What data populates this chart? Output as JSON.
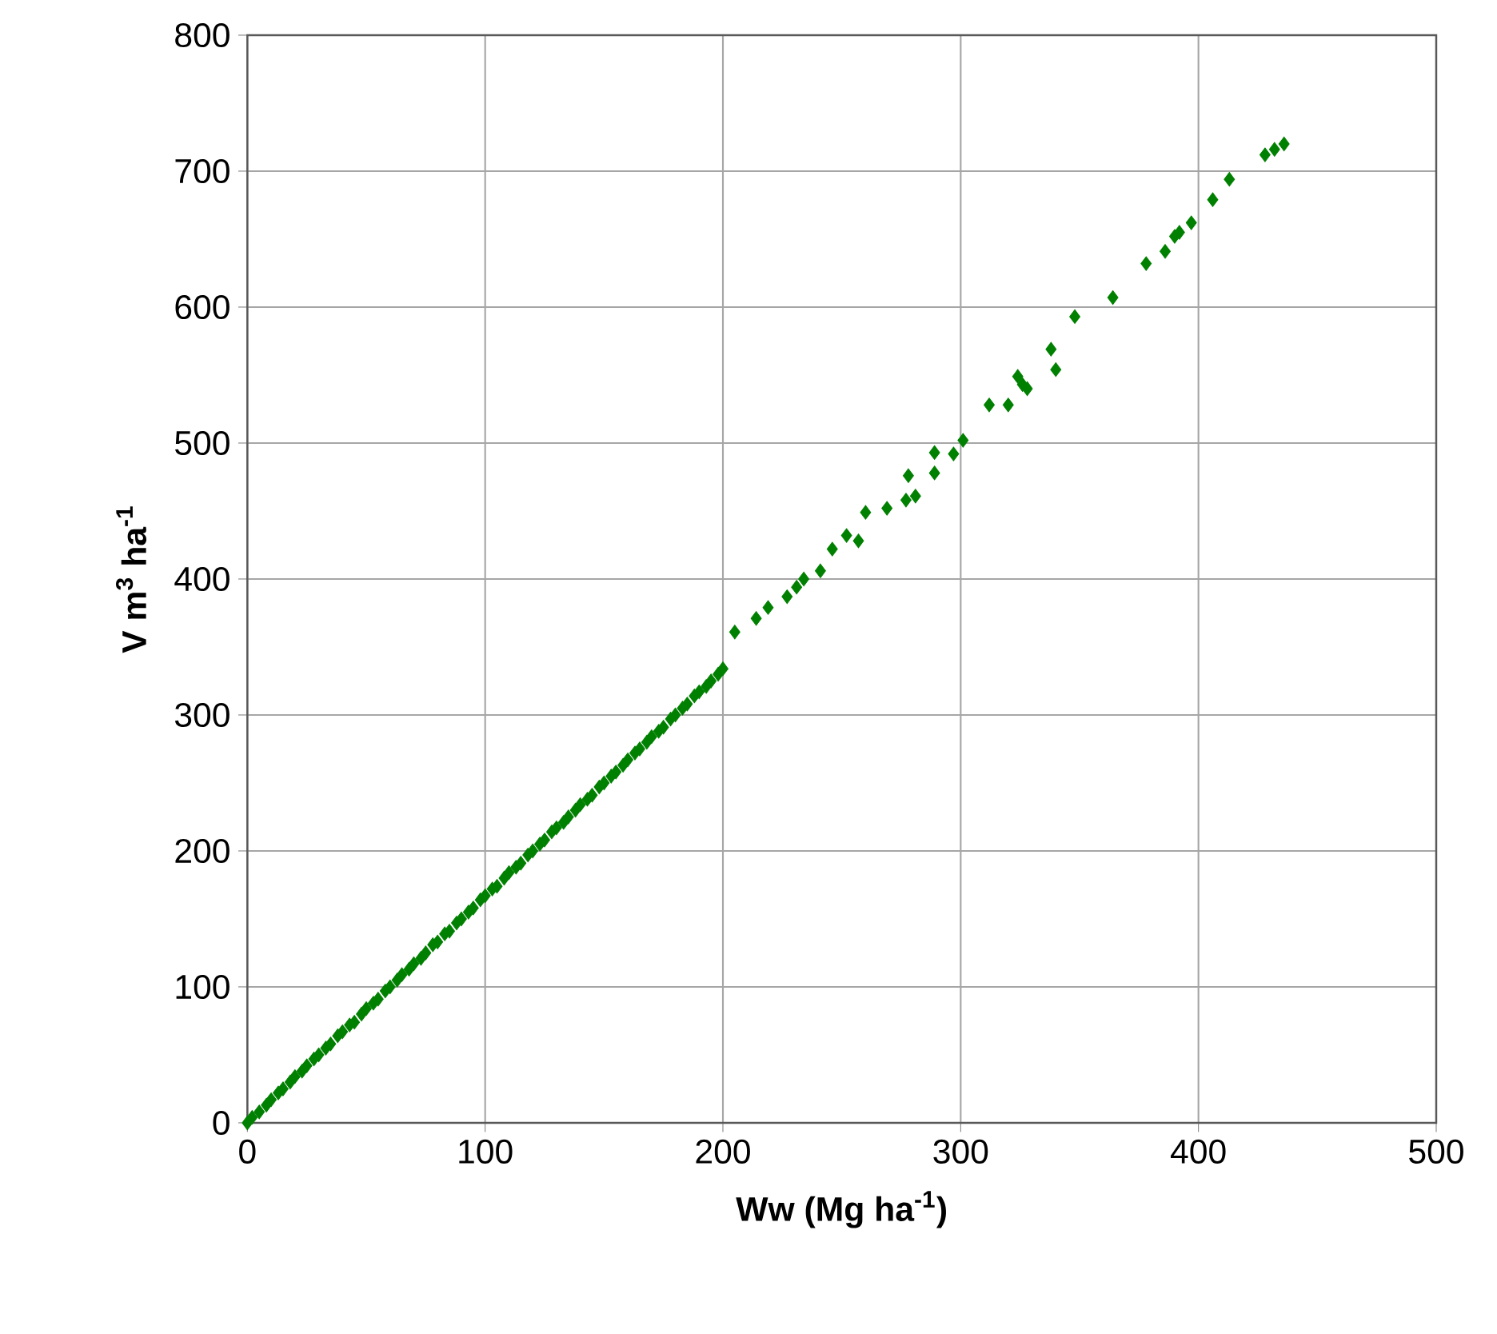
{
  "chart_data": {
    "type": "scatter",
    "xlabel": "Ww (Mg ha$^{-1}$)",
    "ylabel": "V m$^{3}$ ha$^{-1}$",
    "xlim": [
      0,
      500
    ],
    "ylim": [
      0,
      800
    ],
    "xticks": [
      0,
      100,
      200,
      300,
      400,
      500
    ],
    "yticks": [
      0,
      100,
      200,
      300,
      400,
      500,
      600,
      700,
      800
    ],
    "grid": true,
    "marker": "diamond",
    "color": "#008000",
    "x": [
      0,
      2,
      5,
      8,
      10,
      13,
      15,
      18,
      20,
      23,
      25,
      28,
      30,
      33,
      35,
      38,
      40,
      43,
      45,
      48,
      50,
      53,
      55,
      58,
      60,
      63,
      65,
      68,
      70,
      73,
      75,
      78,
      80,
      83,
      85,
      88,
      90,
      93,
      95,
      98,
      100,
      103,
      105,
      108,
      110,
      113,
      115,
      118,
      120,
      123,
      125,
      128,
      130,
      133,
      135,
      138,
      140,
      143,
      145,
      148,
      150,
      153,
      155,
      158,
      160,
      163,
      165,
      168,
      170,
      173,
      175,
      178,
      180,
      183,
      185,
      188,
      190,
      193,
      195,
      198,
      200,
      205,
      214,
      219,
      227,
      231,
      234,
      241,
      246,
      252,
      257,
      260,
      269,
      277,
      281,
      278,
      289,
      289,
      297,
      301,
      312,
      320,
      324,
      326,
      328,
      340,
      338,
      348,
      364,
      378,
      386,
      390,
      392,
      397,
      406,
      413,
      428,
      432,
      436
    ],
    "values": [
      0,
      4,
      8,
      13,
      17,
      22,
      25,
      30,
      34,
      38,
      42,
      47,
      50,
      55,
      58,
      64,
      67,
      72,
      74,
      80,
      84,
      88,
      91,
      97,
      100,
      105,
      109,
      113,
      117,
      121,
      125,
      131,
      133,
      139,
      141,
      147,
      150,
      155,
      158,
      164,
      167,
      172,
      174,
      180,
      184,
      188,
      191,
      197,
      200,
      205,
      208,
      214,
      217,
      221,
      225,
      230,
      234,
      238,
      241,
      247,
      250,
      255,
      258,
      263,
      267,
      272,
      275,
      280,
      284,
      288,
      291,
      297,
      300,
      305,
      308,
      314,
      317,
      321,
      325,
      330,
      334,
      361,
      371,
      379,
      387,
      394,
      400,
      406,
      422,
      432,
      428,
      449,
      452,
      458,
      461,
      476,
      478,
      493,
      492,
      502,
      528,
      528,
      549,
      543,
      540,
      554,
      569,
      593,
      607,
      632,
      641,
      652,
      655,
      662,
      679,
      694,
      712,
      716,
      720
    ]
  }
}
